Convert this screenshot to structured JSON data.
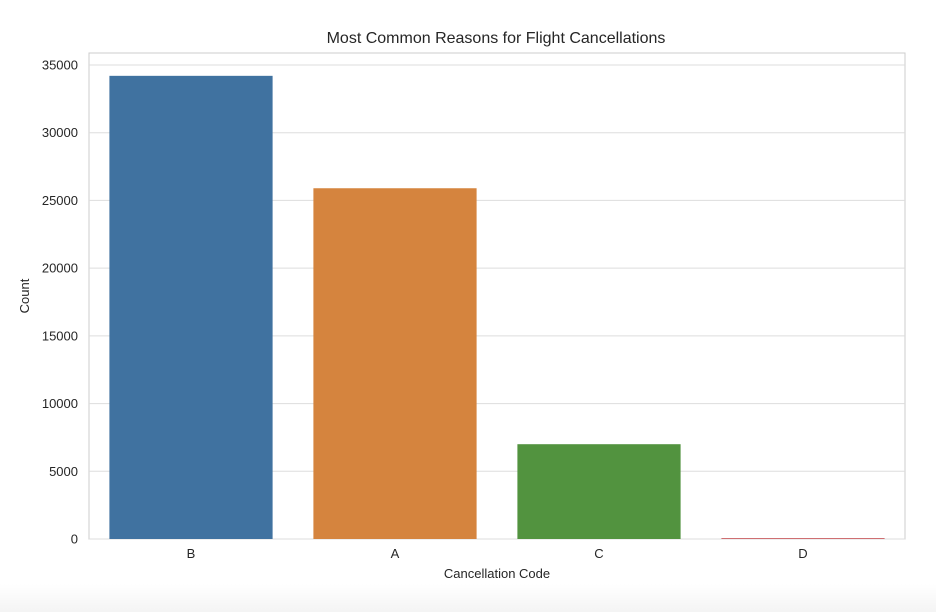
{
  "chart_data": {
    "type": "bar",
    "title": "Most Common Reasons for Flight Cancellations",
    "xlabel": "Cancellation Code",
    "ylabel": "Count",
    "categories": [
      "B",
      "A",
      "C",
      "D"
    ],
    "values": [
      34200,
      25900,
      7000,
      60
    ],
    "colors": [
      "#4072A0",
      "#D5843E",
      "#52933F",
      "#C44E52"
    ],
    "ylim": [
      0,
      35000
    ],
    "yticks": [
      0,
      5000,
      10000,
      15000,
      20000,
      25000,
      30000,
      35000
    ],
    "grid": "horizontal",
    "legend": "none"
  }
}
